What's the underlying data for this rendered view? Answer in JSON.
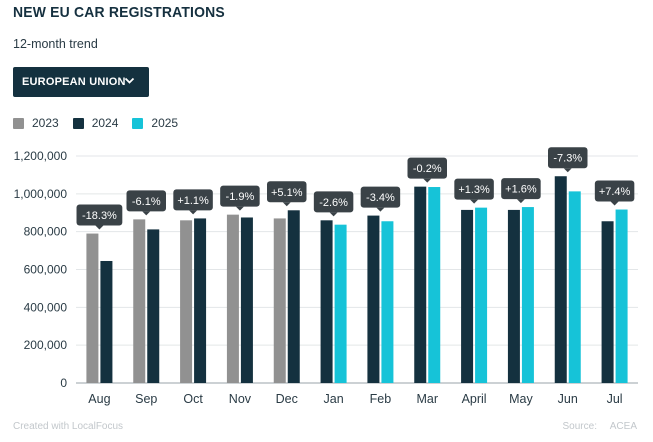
{
  "header": {
    "title": "NEW EU CAR REGISTRATIONS",
    "subtitle": "12-month trend"
  },
  "selector": {
    "label": "EUROPEAN UNION",
    "icon": "chevron-down-icon"
  },
  "footer": {
    "credit": "Created with LocalFocus",
    "source_label": "Source:",
    "source": "ACEA"
  },
  "colors": {
    "2023": "#919191",
    "2024": "#14313f",
    "2025": "#16c3d8",
    "label_bg": "#3a4247"
  },
  "chart_data": {
    "type": "bar",
    "categories": [
      "Aug",
      "Sep",
      "Oct",
      "Nov",
      "Dec",
      "Jan",
      "Feb",
      "Mar",
      "April",
      "May",
      "Jun",
      "Jul"
    ],
    "ylim": [
      0,
      1200000
    ],
    "yticks": [
      0,
      200000,
      400000,
      600000,
      800000,
      1000000,
      1200000
    ],
    "ytick_labels": [
      "0",
      "200,000",
      "400,000",
      "600,000",
      "800,000",
      "1,000,000",
      "1,200,000"
    ],
    "grid": true,
    "legend_position": "top-left",
    "series": [
      {
        "name": "2023",
        "values": [
          790000,
          865000,
          860000,
          890000,
          870000,
          null,
          null,
          null,
          null,
          null,
          null,
          null
        ]
      },
      {
        "name": "2024",
        "values": [
          645000,
          812000,
          870000,
          875000,
          913000,
          860000,
          885000,
          1038000,
          915000,
          915000,
          1093000,
          855000
        ]
      },
      {
        "name": "2025",
        "values": [
          null,
          null,
          null,
          null,
          null,
          837000,
          855000,
          1036000,
          927000,
          930000,
          1013000,
          917000
        ]
      }
    ],
    "data_labels": [
      "-18.3%",
      "-6.1%",
      "+1.1%",
      "-1.9%",
      "+5.1%",
      "-2.6%",
      "-3.4%",
      "-0.2%",
      "+1.3%",
      "+1.6%",
      "-7.3%",
      "+7.4%"
    ]
  }
}
